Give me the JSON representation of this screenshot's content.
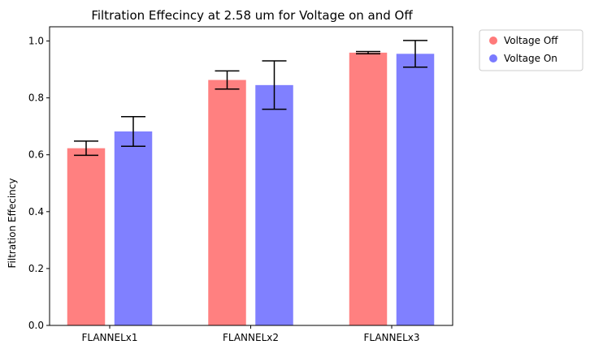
{
  "chart_data": {
    "type": "bar",
    "title": "Filtration Effecincy at 2.58 um for Voltage on and Off",
    "xlabel": "",
    "ylabel": "Filtration Effecincy",
    "categories": [
      "FLANNELx1",
      "FLANNELx2",
      "FLANNELx3"
    ],
    "ylim": [
      0,
      1.05
    ],
    "yticks": [
      0.0,
      0.2,
      0.4,
      0.6,
      0.8,
      1.0
    ],
    "ytick_labels": [
      "0.0",
      "0.2",
      "0.4",
      "0.6",
      "0.8",
      "1.0"
    ],
    "grid": false,
    "legend_position": "outside-top-right",
    "series": [
      {
        "name": "Voltage Off",
        "color": "#ff8080",
        "marker_color": "#ff6b6b",
        "values": [
          0.623,
          0.863,
          0.959
        ],
        "error": [
          0.025,
          0.032,
          0.004
        ]
      },
      {
        "name": "Voltage On",
        "color": "#8080ff",
        "marker_color": "#6b6bff",
        "values": [
          0.682,
          0.845,
          0.955
        ],
        "error": [
          0.052,
          0.085,
          0.047
        ]
      }
    ]
  }
}
